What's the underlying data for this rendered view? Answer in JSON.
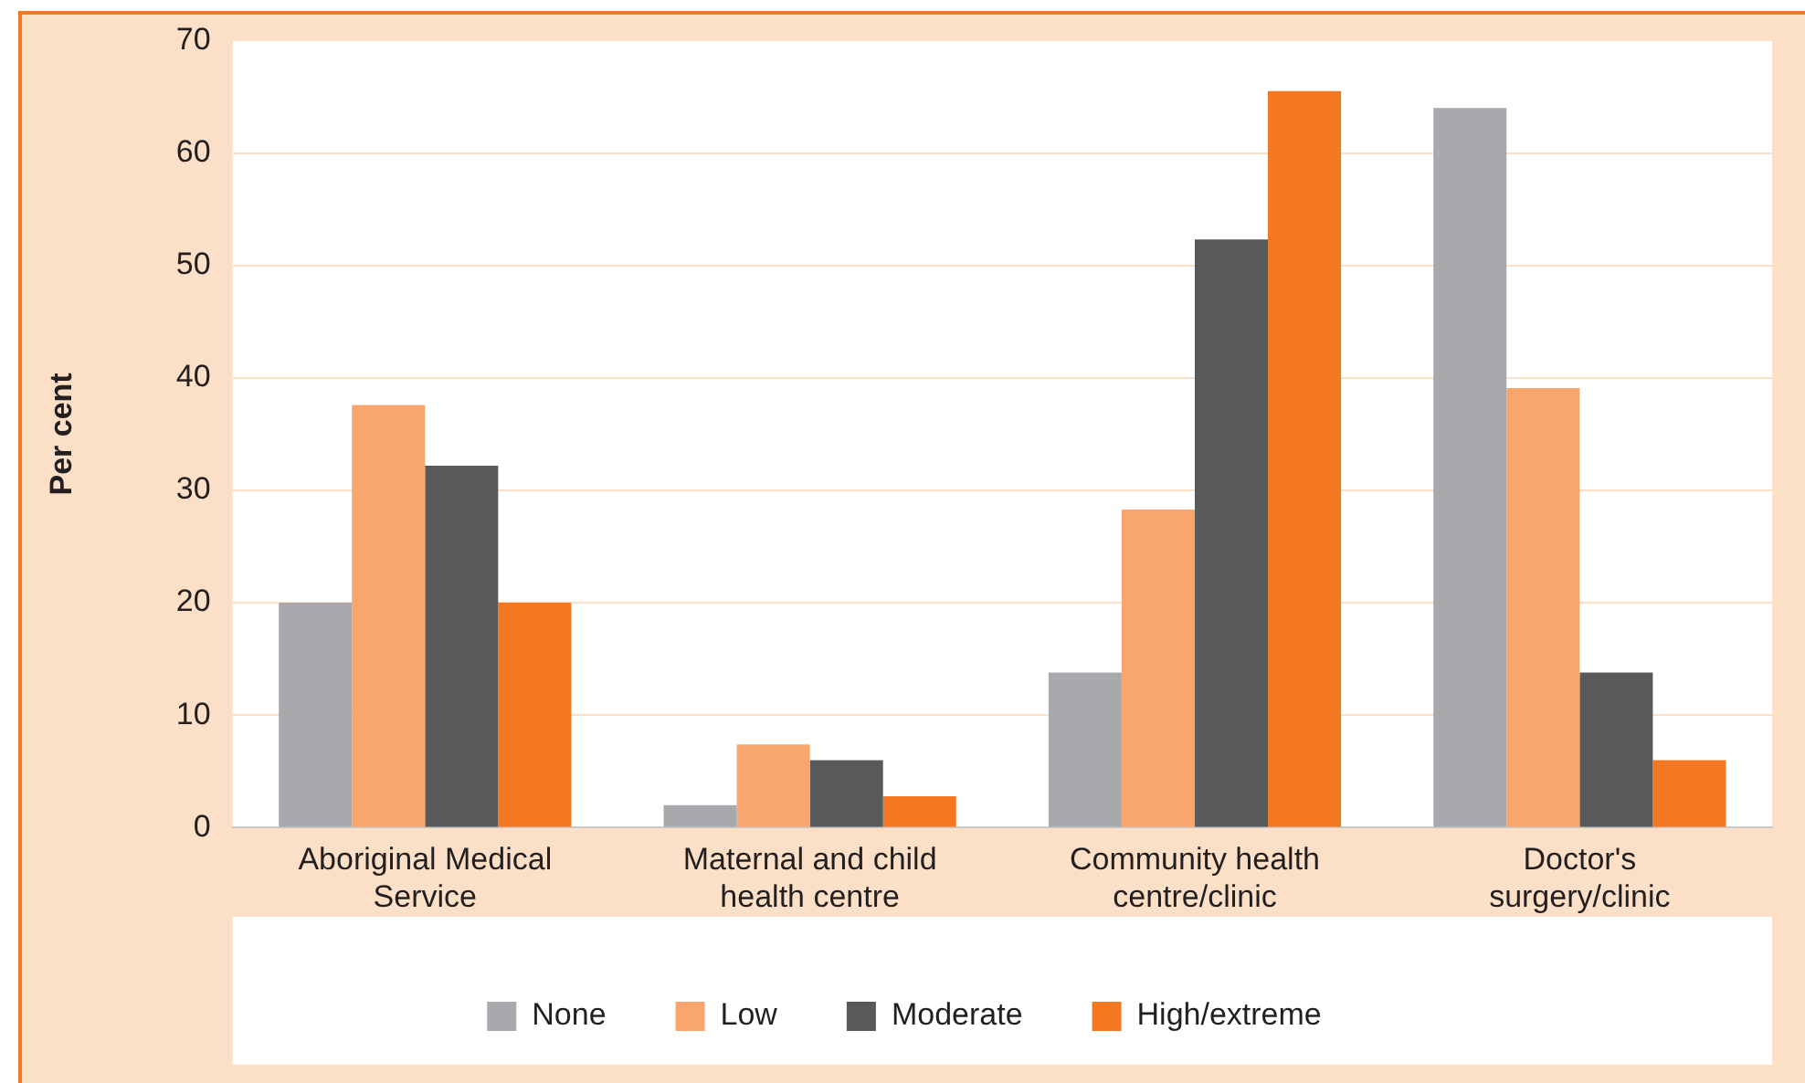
{
  "chart_data": {
    "type": "bar",
    "ylabel": "Per cent",
    "categories": [
      "Aboriginal Medical Service",
      "Maternal and child health centre",
      "Community health centre/clinic",
      "Doctor's surgery/clinic"
    ],
    "series": [
      {
        "name": "None",
        "color": "#a7a9ac",
        "values": [
          20,
          2,
          13.8,
          64
        ]
      },
      {
        "name": "Low",
        "color": "#f8a56e",
        "values": [
          37.6,
          7.4,
          28.3,
          39.1
        ]
      },
      {
        "name": "Moderate",
        "color": "#58595b",
        "values": [
          32.2,
          6,
          52.3,
          13.8
        ]
      },
      {
        "name": "High/extreme",
        "color": "#f47721",
        "values": [
          20,
          2.8,
          65.5,
          6
        ]
      }
    ],
    "ylim": [
      0,
      70
    ],
    "yticks": [
      0,
      10,
      20,
      30,
      40,
      50,
      60,
      70
    ],
    "grid": "y",
    "legend": "bottom"
  }
}
